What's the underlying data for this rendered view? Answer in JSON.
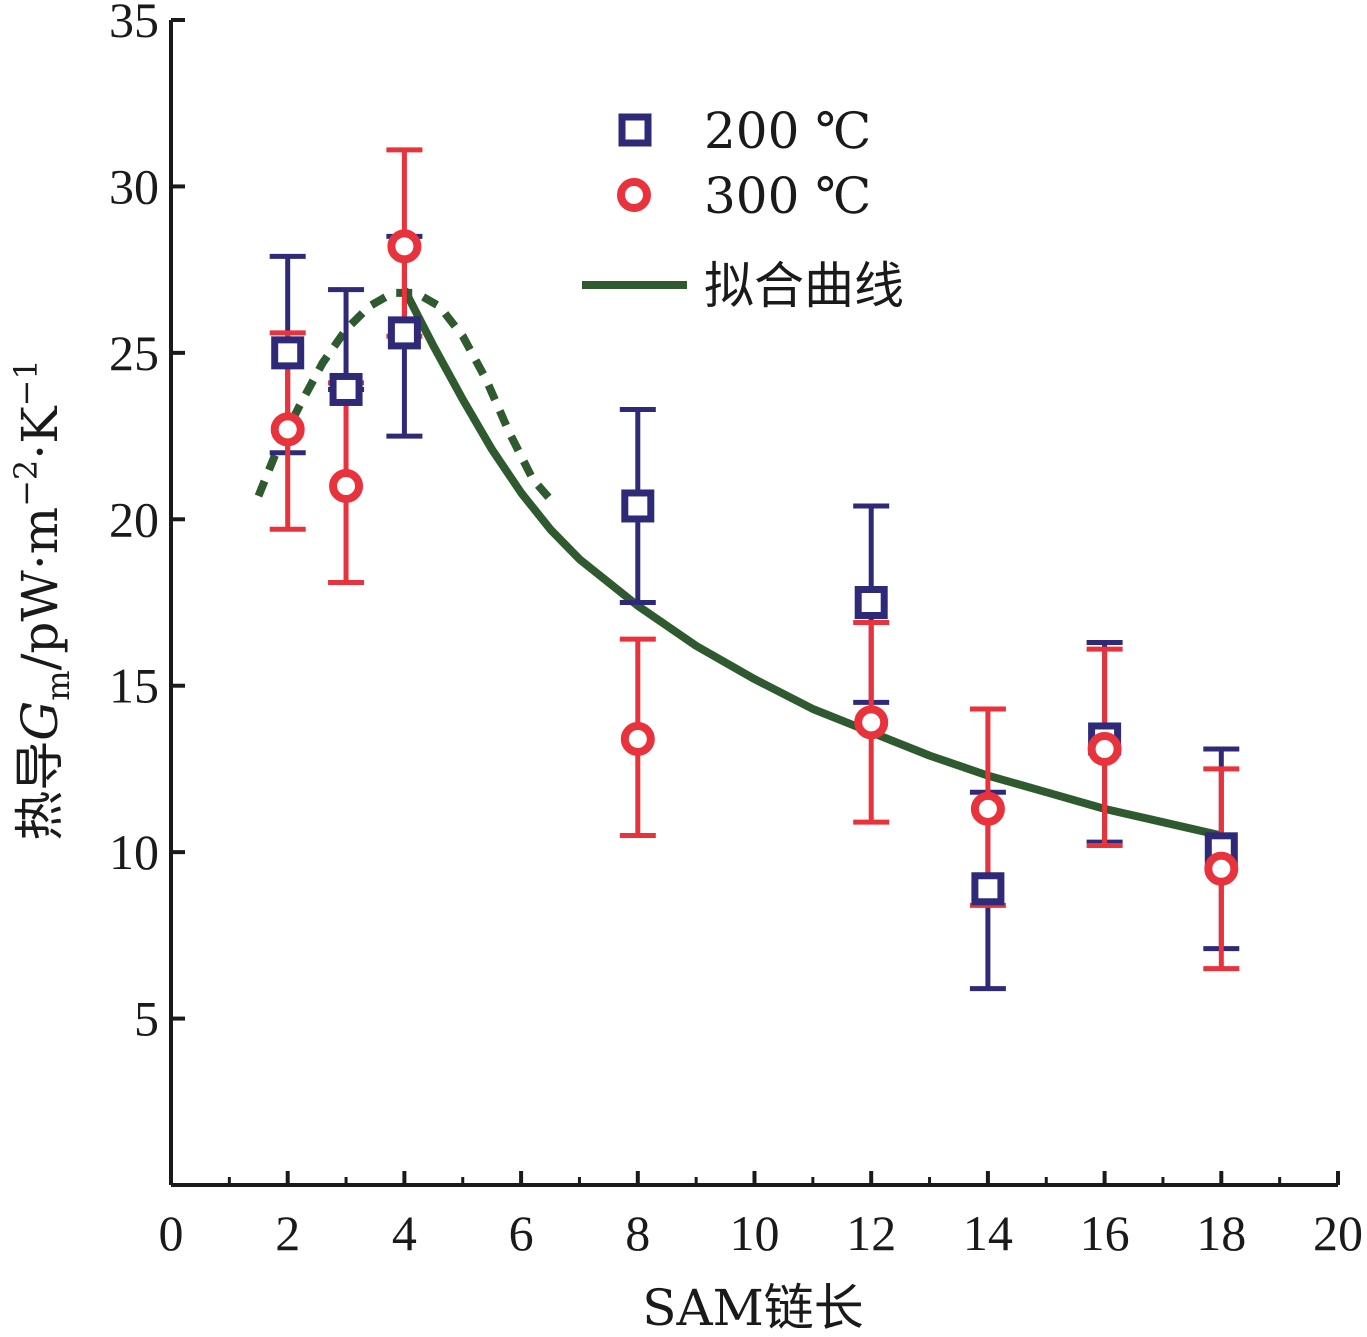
{
  "chart_data": {
    "type": "scatter",
    "xlabel": "SAM链长",
    "ylabel": {
      "prefix": "热导",
      "symbol": "G",
      "subscript": "m",
      "unit_pre": "/pW·m",
      "sup1": "−2",
      "mid": "·K",
      "sup2": "−1"
    },
    "xlim": [
      0,
      20
    ],
    "ylim": [
      0,
      35
    ],
    "xticks": [
      "0",
      "2",
      "4",
      "6",
      "8",
      "10",
      "12",
      "14",
      "16",
      "18",
      "20"
    ],
    "yticks": [
      "5",
      "10",
      "15",
      "20",
      "25",
      "30",
      "35"
    ],
    "grid": false,
    "legend_position": "top-right",
    "colors": {
      "s200": "#2e2a78",
      "s300": "#e8323c",
      "fit": "#2f5a2f",
      "axis": "#1a1a1a"
    },
    "series": [
      {
        "name": "200 ℃",
        "marker": "square",
        "x": [
          2,
          3,
          4,
          8,
          12,
          14,
          16,
          18
        ],
        "y": [
          25.0,
          23.9,
          25.6,
          20.4,
          17.5,
          8.9,
          13.4,
          10.1
        ],
        "err_low": [
          22.0,
          23.9,
          22.5,
          17.5,
          14.5,
          5.9,
          10.3,
          7.1
        ],
        "err_high": [
          27.9,
          26.9,
          28.5,
          23.3,
          20.4,
          11.8,
          16.3,
          13.1
        ]
      },
      {
        "name": "300 ℃",
        "marker": "circle",
        "x": [
          2,
          3,
          4,
          8,
          12,
          14,
          16,
          18
        ],
        "y": [
          22.7,
          21.0,
          28.2,
          13.4,
          13.9,
          11.3,
          13.1,
          9.5
        ],
        "err_low": [
          19.7,
          18.1,
          25.5,
          10.5,
          10.9,
          8.4,
          10.2,
          6.5
        ],
        "err_high": [
          25.6,
          24.1,
          31.1,
          16.4,
          16.9,
          14.3,
          16.1,
          12.5
        ]
      },
      {
        "name": "拟合曲线",
        "line": "solid",
        "x": [
          4.0,
          4.5,
          5.0,
          5.5,
          6.0,
          6.5,
          7.0,
          8.0,
          9.0,
          10.0,
          11.0,
          12.0,
          13.0,
          14.0,
          15.0,
          16.0,
          17.0,
          18.0
        ],
        "y": [
          26.9,
          25.2,
          23.6,
          22.1,
          20.8,
          19.7,
          18.8,
          17.4,
          16.2,
          15.2,
          14.3,
          13.6,
          12.9,
          12.3,
          11.8,
          11.3,
          10.9,
          10.5
        ]
      },
      {
        "line": "dashed",
        "x": [
          1.5,
          1.8,
          2.2,
          2.6,
          3.0,
          3.4,
          3.8,
          4.2,
          4.6,
          5.0,
          5.4,
          5.8,
          6.2,
          6.5
        ],
        "y": [
          20.7,
          22.0,
          23.4,
          24.7,
          25.7,
          26.4,
          26.8,
          26.8,
          26.4,
          25.5,
          24.2,
          22.6,
          21.2,
          20.6
        ]
      }
    ]
  }
}
